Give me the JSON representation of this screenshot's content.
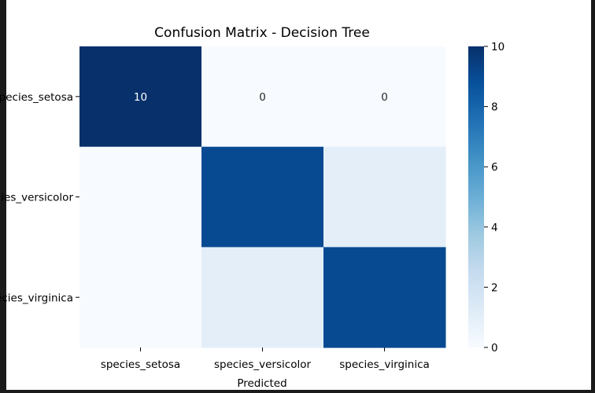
{
  "chart_data": {
    "type": "heatmap",
    "title": "Confusion Matrix - Decision Tree",
    "xlabel": "Predicted",
    "ylabel": "",
    "x_categories": [
      "species_setosa",
      "species_versicolor",
      "species_virginica"
    ],
    "y_categories": [
      "species_setosa",
      "species_versicolor",
      "species_virginica"
    ],
    "values": [
      [
        10,
        0,
        0
      ],
      [
        0,
        9,
        1
      ],
      [
        0,
        1,
        9
      ]
    ],
    "annotations_visible": [
      [
        true,
        true,
        true
      ],
      [
        false,
        false,
        false
      ],
      [
        false,
        false,
        false
      ]
    ],
    "colorbar": {
      "min": 0,
      "max": 10,
      "ticks": [
        0,
        2,
        4,
        6,
        8,
        10
      ]
    },
    "colormap": "Blues",
    "colors": {
      "low": "#f7fbff",
      "high": "#08306b"
    }
  }
}
